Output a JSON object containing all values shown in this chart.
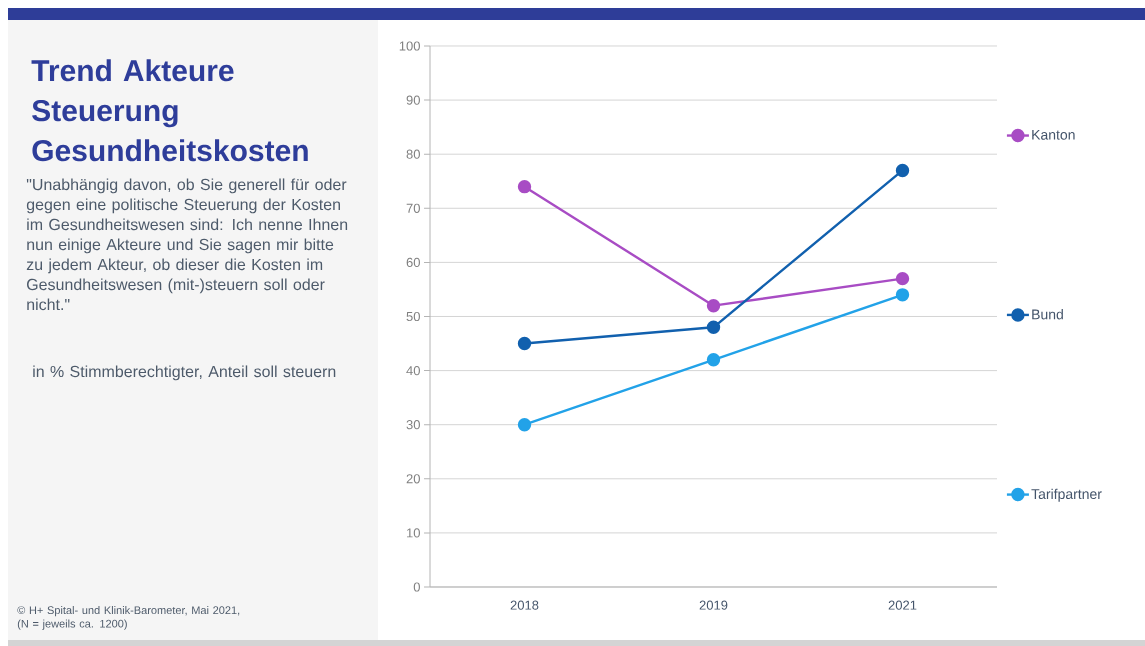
{
  "chart_data": {
    "type": "line",
    "title": "Trend Akteure Steuerung Gesundheitskosten",
    "subtitle": "\"Unabhängig davon, ob Sie generell für oder gegen eine politische Steuerung der Kosten im Gesundheitswesen sind: Ich nenne Ihnen nun einige Akteure und Sie sagen mir bitte zu jedem Akteur, ob dieser die Kosten im Gesundheitswesen (mit-)steuern soll oder nicht.\"",
    "annotations": [
      "in % Stimmberechtigter, Anteil soll steuern",
      "© H+ Spital- und Klinik-Barometer, Mai 2021, (N = jeweils ca. 1200)"
    ],
    "categories": [
      "2018",
      "2019",
      "2021"
    ],
    "series": [
      {
        "name": "Kanton",
        "color": "#a84cc4",
        "values": [
          74,
          52,
          57
        ]
      },
      {
        "name": "Bund",
        "color": "#1160ae",
        "values": [
          45,
          48,
          77
        ]
      },
      {
        "name": "Tarifpartner",
        "color": "#22a2e8",
        "values": [
          30,
          42,
          54
        ]
      }
    ],
    "ylim": [
      0,
      100
    ],
    "yticks": [
      0,
      10,
      20,
      30,
      40,
      50,
      60,
      70,
      80,
      90,
      100
    ],
    "grid": "y",
    "legend": "right",
    "marker": "circle",
    "line_style": "solid"
  }
}
